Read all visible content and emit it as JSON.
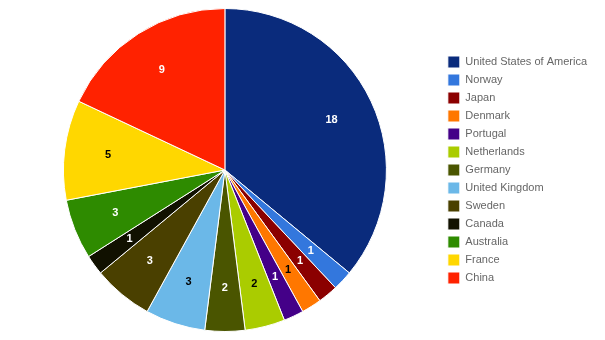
{
  "chart_data": {
    "type": "pie",
    "categories": [
      "United States of America",
      "Norway",
      "Japan",
      "Denmark",
      "Portugal",
      "Netherlands",
      "Germany",
      "United Kingdom",
      "Sweden",
      "Canada",
      "Australia",
      "France",
      "China"
    ],
    "values": [
      18,
      1,
      1,
      1,
      1,
      2,
      2,
      3,
      3,
      1,
      3,
      5,
      9
    ],
    "colors": [
      "#0A2B7C",
      "#3377DD",
      "#8B0000",
      "#FF7700",
      "#440088",
      "#AACC00",
      "#4A5500",
      "#6BB8E8",
      "#4A4000",
      "#111100",
      "#2E8B00",
      "#FFD700",
      "#FF2200"
    ],
    "data_labels": true,
    "legend": "right"
  }
}
